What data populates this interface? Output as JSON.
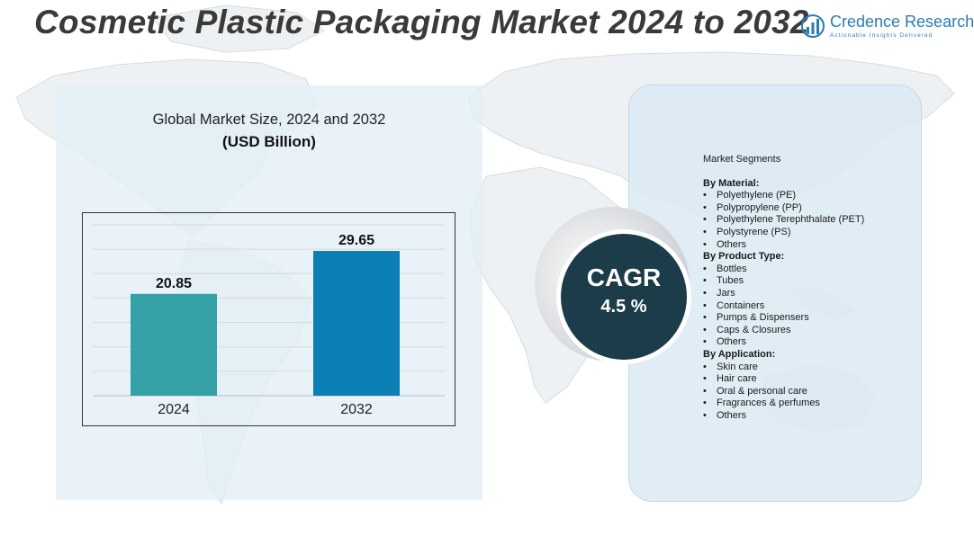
{
  "title": "Cosmetic Plastic Packaging Market 2024 to 2032",
  "logo": {
    "name": "Credence Research",
    "tagline": "Actionable Insights Delivered"
  },
  "chart_heading": "Global Market Size, 2024 and 2032",
  "chart_subheading": "(USD Billion)",
  "chart_data": {
    "type": "bar",
    "title": "Global Market Size, 2024 and 2032",
    "subtitle": "(USD Billion)",
    "categories": [
      "2024",
      "2032"
    ],
    "values": [
      20.85,
      29.65
    ],
    "value_labels": [
      "20.85",
      "29.65"
    ],
    "colors": [
      "#33a1a5",
      "#0b7eb3"
    ],
    "ylim": [
      0,
      35
    ],
    "grid": true,
    "legend": "none"
  },
  "cagr": {
    "label": "CAGR",
    "value": "4.5 %"
  },
  "segments": {
    "title": "Market Segments",
    "groups": [
      {
        "title": "By Material:",
        "items": [
          "Polyethylene (PE)",
          "Polypropylene (PP)",
          "Polyethylene Terephthalate (PET)",
          "Polystyrene (PS)",
          "Others"
        ]
      },
      {
        "title": "By Product Type:",
        "items": [
          "Bottles",
          "Tubes",
          "Jars",
          "Containers",
          "Pumps & Dispensers",
          "Caps & Closures",
          "Others"
        ]
      },
      {
        "title": "By Application:",
        "items": [
          "Skin care",
          "Hair care",
          "Oral & personal care",
          "Fragrances & perfumes",
          "Others"
        ]
      }
    ]
  }
}
